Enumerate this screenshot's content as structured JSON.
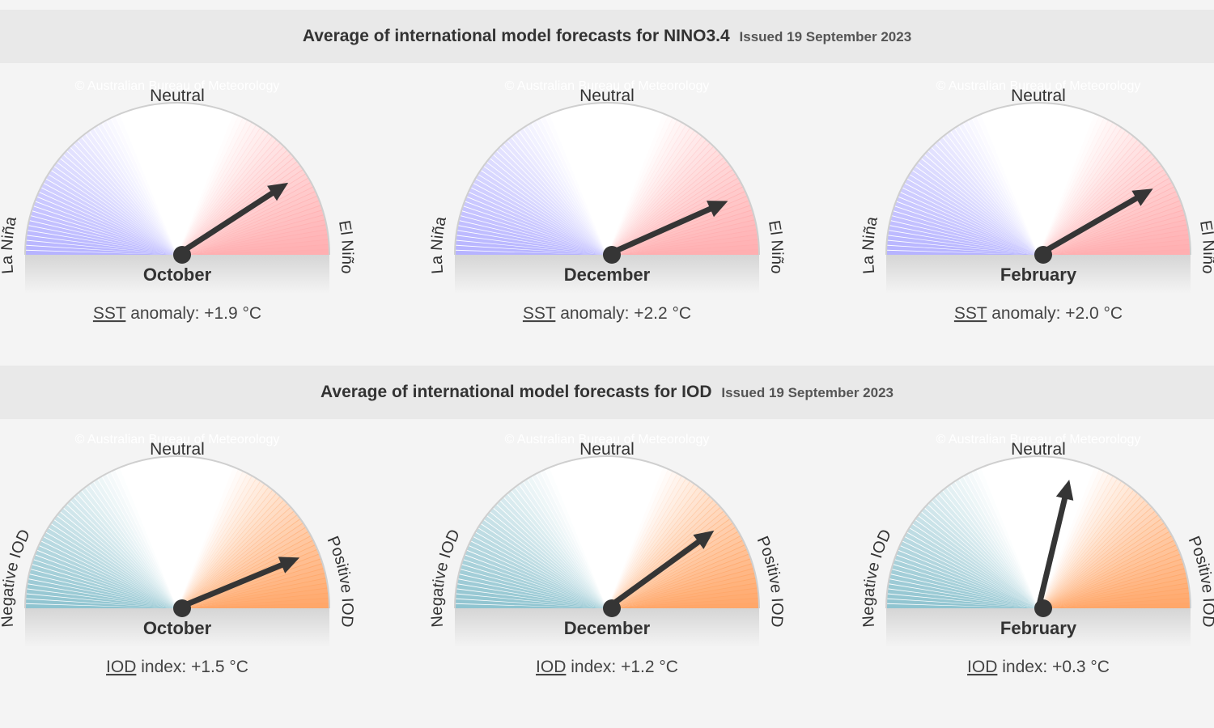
{
  "sections": [
    {
      "title": "Average of international model forecasts for NINO3.4",
      "issued": "Issued 19 September 2023",
      "labels": {
        "left": "La Niña",
        "top": "Neutral",
        "right": "El Niño"
      },
      "watermark": "© Australian Bureau of Meteorology",
      "readout_abbr": "SST",
      "readout_text": " anomaly: ",
      "colors": {
        "left": "#b5b2ff",
        "right": "#ffaeb0"
      },
      "range": [
        -3,
        3
      ],
      "gauges": [
        {
          "month": "October",
          "value": 1.9,
          "value_label": "+1.9 °C"
        },
        {
          "month": "December",
          "value": 2.2,
          "value_label": "+2.2 °C"
        },
        {
          "month": "February",
          "value": 2.0,
          "value_label": "+2.0 °C"
        }
      ]
    },
    {
      "title": "Average of international model forecasts for IOD",
      "issued": "Issued 19 September 2023",
      "labels": {
        "left": "Negative IOD",
        "top": "Neutral",
        "right": "Positive IOD"
      },
      "watermark": "© Australian Bureau of Meteorology",
      "readout_abbr": "IOD",
      "readout_text": " index: ",
      "colors": {
        "left": "#8ec3cf",
        "right": "#ffa668"
      },
      "range": [
        -2,
        2
      ],
      "gauges": [
        {
          "month": "October",
          "value": 1.5,
          "value_label": "+1.5 °C"
        },
        {
          "month": "December",
          "value": 1.2,
          "value_label": "+1.2 °C"
        },
        {
          "month": "February",
          "value": 0.3,
          "value_label": "+0.3 °C"
        }
      ]
    }
  ],
  "chart_data": [
    {
      "type": "gauge",
      "title": "Average of international model forecasts for NINO3.4",
      "categories": [
        "October",
        "December",
        "February"
      ],
      "values": [
        1.9,
        2.2,
        2.0
      ],
      "unit": "°C",
      "ylabel": "SST anomaly"
    },
    {
      "type": "gauge",
      "title": "Average of international model forecasts for IOD",
      "categories": [
        "October",
        "December",
        "February"
      ],
      "values": [
        1.5,
        1.2,
        0.3
      ],
      "unit": "°C",
      "ylabel": "IOD index"
    }
  ]
}
